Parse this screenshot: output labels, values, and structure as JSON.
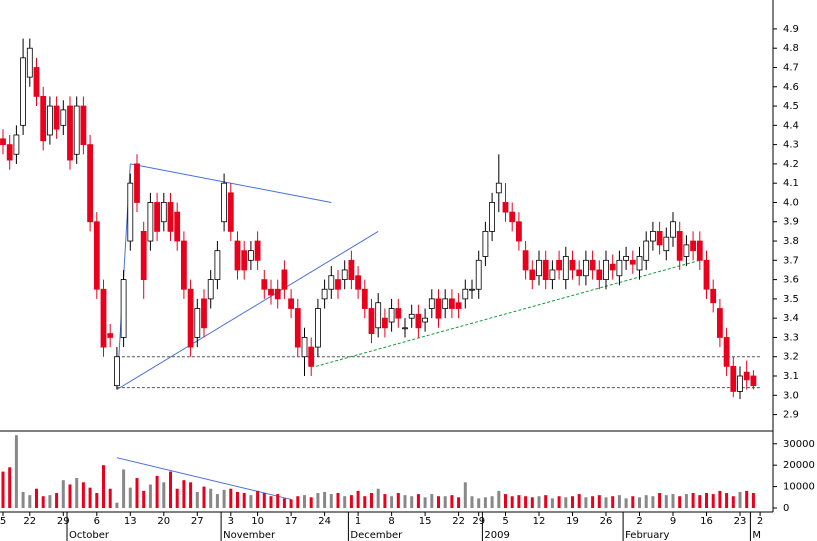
{
  "chart_data": {
    "type": "candlestick",
    "categories": [
      "5",
      null,
      null,
      null,
      "22",
      null,
      null,
      null,
      null,
      "29",
      null,
      null,
      null,
      null,
      "6",
      null,
      null,
      null,
      null,
      "13",
      null,
      null,
      null,
      null,
      "20",
      null,
      null,
      null,
      null,
      "27",
      null,
      null,
      null,
      null,
      "3",
      null,
      null,
      null,
      "10",
      null,
      null,
      null,
      null,
      "17",
      null,
      null,
      null,
      null,
      "24",
      null,
      null,
      null,
      null,
      "1",
      null,
      null,
      null,
      null,
      "8",
      null,
      null,
      null,
      null,
      "15",
      null,
      null,
      null,
      null,
      "22",
      null,
      null,
      "29",
      null,
      null,
      null,
      "5",
      null,
      null,
      null,
      null,
      "12",
      null,
      null,
      null,
      null,
      "19",
      null,
      null,
      null,
      null,
      "26",
      null,
      null,
      null,
      null,
      "2",
      null,
      null,
      null,
      null,
      "9",
      null,
      null,
      null,
      null,
      "16",
      null,
      null,
      null,
      null,
      "23",
      null,
      null,
      "2"
    ],
    "period_labels": [
      null,
      null,
      null,
      null,
      null,
      null,
      null,
      null,
      null,
      null,
      "October",
      null,
      null,
      null,
      null,
      null,
      null,
      null,
      null,
      null,
      null,
      null,
      null,
      null,
      null,
      null,
      null,
      null,
      null,
      null,
      null,
      null,
      null,
      "November",
      null,
      null,
      null,
      null,
      null,
      null,
      null,
      null,
      null,
      null,
      null,
      null,
      null,
      null,
      null,
      null,
      null,
      null,
      "December",
      null,
      null,
      null,
      null,
      null,
      null,
      null,
      null,
      null,
      null,
      null,
      null,
      null,
      null,
      null,
      null,
      null,
      null,
      null,
      "2009",
      null,
      null,
      null,
      null,
      null,
      null,
      null,
      null,
      null,
      null,
      null,
      null,
      null,
      null,
      null,
      null,
      null,
      null,
      null,
      null,
      "February",
      null,
      null,
      null,
      null,
      null,
      null,
      null,
      null,
      null,
      null,
      null,
      null,
      null,
      null,
      null,
      null,
      null,
      null,
      "M"
    ],
    "open": [
      4.33,
      4.3,
      4.25,
      4.4,
      4.65,
      4.7,
      4.55,
      4.35,
      4.5,
      4.4,
      4.5,
      4.25,
      4.5,
      4.3,
      3.9,
      3.55,
      3.32,
      3.05,
      3.3,
      3.8,
      4.2,
      3.85,
      3.8,
      4.0,
      3.9,
      4.0,
      3.95,
      3.8,
      3.55,
      3.3,
      3.5,
      3.5,
      3.6,
      3.9,
      4.05,
      3.8,
      3.75,
      3.7,
      3.8,
      3.6,
      3.55,
      3.55,
      3.65,
      3.5,
      3.45,
      3.2,
      3.25,
      3.25,
      3.5,
      3.55,
      3.6,
      3.6,
      3.7,
      3.62,
      3.55,
      3.45,
      3.35,
      3.4,
      3.38,
      3.45,
      3.35,
      3.4,
      3.42,
      3.38,
      3.45,
      3.5,
      3.45,
      3.5,
      3.48,
      3.5,
      3.55,
      3.55,
      3.72,
      3.85,
      4.05,
      4.0,
      3.95,
      3.9,
      3.75,
      3.65,
      3.62,
      3.7,
      3.6,
      3.7,
      3.6,
      3.7,
      3.65,
      3.62,
      3.7,
      3.65,
      3.6,
      3.68,
      3.62,
      3.7,
      3.7,
      3.65,
      3.7,
      3.8,
      3.85,
      3.75,
      3.82,
      3.85,
      3.72,
      3.8,
      3.8,
      3.7,
      3.55,
      3.45,
      3.3,
      3.15,
      3.02,
      3.12,
      3.1,
      null
    ],
    "high": [
      4.38,
      4.35,
      4.4,
      4.85,
      4.85,
      4.75,
      4.6,
      4.55,
      4.55,
      4.53,
      4.55,
      4.55,
      4.55,
      4.35,
      3.95,
      3.6,
      3.37,
      3.25,
      3.65,
      4.15,
      4.25,
      3.9,
      4.05,
      4.05,
      4.05,
      4.05,
      4.0,
      3.85,
      3.6,
      3.5,
      3.55,
      3.65,
      3.8,
      4.15,
      4.1,
      3.85,
      3.8,
      3.8,
      3.85,
      3.65,
      3.6,
      3.6,
      3.7,
      3.55,
      3.5,
      3.35,
      3.3,
      3.5,
      3.6,
      3.67,
      3.65,
      3.7,
      3.75,
      3.67,
      3.6,
      3.5,
      3.53,
      3.45,
      3.5,
      3.5,
      3.4,
      3.47,
      3.47,
      3.45,
      3.55,
      3.55,
      3.55,
      3.55,
      3.53,
      3.6,
      3.6,
      3.75,
      3.9,
      4.05,
      4.25,
      4.1,
      4.0,
      3.95,
      3.8,
      3.7,
      3.75,
      3.75,
      3.7,
      3.75,
      3.77,
      3.75,
      3.7,
      3.75,
      3.75,
      3.7,
      3.75,
      3.73,
      3.75,
      3.77,
      3.75,
      3.77,
      3.85,
      3.9,
      3.9,
      3.87,
      3.95,
      3.9,
      3.83,
      3.85,
      3.85,
      3.75,
      3.6,
      3.5,
      3.35,
      3.2,
      3.15,
      3.18,
      3.13,
      null
    ],
    "low": [
      4.25,
      4.17,
      4.2,
      4.35,
      4.6,
      4.5,
      4.27,
      4.3,
      4.33,
      4.35,
      4.17,
      4.2,
      4.25,
      3.85,
      3.5,
      3.2,
      3.25,
      3.03,
      3.25,
      3.75,
      3.95,
      3.5,
      3.75,
      3.8,
      3.85,
      3.8,
      3.75,
      3.5,
      3.2,
      3.25,
      3.3,
      3.45,
      3.55,
      3.85,
      3.8,
      3.6,
      3.6,
      3.65,
      3.65,
      3.5,
      3.47,
      3.45,
      3.5,
      3.4,
      3.2,
      3.1,
      3.1,
      3.2,
      3.45,
      3.5,
      3.5,
      3.55,
      3.55,
      3.5,
      3.4,
      3.27,
      3.3,
      3.3,
      3.33,
      3.35,
      3.3,
      3.35,
      3.3,
      3.33,
      3.4,
      3.35,
      3.4,
      3.4,
      3.4,
      3.45,
      3.5,
      3.5,
      3.67,
      3.8,
      3.95,
      3.9,
      3.85,
      3.75,
      3.6,
      3.55,
      3.57,
      3.55,
      3.55,
      3.6,
      3.55,
      3.6,
      3.57,
      3.57,
      3.6,
      3.55,
      3.55,
      3.6,
      3.57,
      3.65,
      3.63,
      3.6,
      3.65,
      3.75,
      3.73,
      3.7,
      3.77,
      3.65,
      3.67,
      3.7,
      3.65,
      3.5,
      3.43,
      3.25,
      3.1,
      2.99,
      2.98,
      3.03,
      3.03,
      null
    ],
    "close": [
      4.3,
      4.22,
      4.35,
      4.75,
      4.8,
      4.55,
      4.32,
      4.5,
      4.38,
      4.48,
      4.22,
      4.5,
      4.3,
      3.9,
      3.55,
      3.25,
      3.3,
      3.2,
      3.6,
      4.1,
      4.0,
      3.6,
      4.0,
      3.85,
      4.0,
      3.85,
      3.8,
      3.55,
      3.25,
      3.45,
      3.35,
      3.6,
      3.75,
      4.1,
      3.85,
      3.65,
      3.65,
      3.75,
      3.7,
      3.55,
      3.52,
      3.5,
      3.55,
      3.45,
      3.25,
      3.3,
      3.15,
      3.45,
      3.55,
      3.62,
      3.55,
      3.65,
      3.6,
      3.55,
      3.45,
      3.32,
      3.48,
      3.35,
      3.45,
      3.4,
      3.35,
      3.42,
      3.35,
      3.4,
      3.5,
      3.4,
      3.5,
      3.45,
      3.45,
      3.55,
      3.55,
      3.7,
      3.85,
      4.0,
      4.1,
      3.95,
      3.9,
      3.8,
      3.65,
      3.6,
      3.7,
      3.6,
      3.65,
      3.65,
      3.72,
      3.65,
      3.62,
      3.7,
      3.65,
      3.6,
      3.7,
      3.65,
      3.7,
      3.72,
      3.68,
      3.72,
      3.8,
      3.85,
      3.78,
      3.82,
      3.9,
      3.7,
      3.78,
      3.75,
      3.7,
      3.55,
      3.48,
      3.3,
      3.15,
      3.02,
      3.1,
      3.08,
      3.05,
      null
    ],
    "volume": [
      17000,
      19000,
      34000,
      7500,
      6000,
      9000,
      5500,
      6000,
      7000,
      13000,
      11000,
      14000,
      12000,
      9500,
      7000,
      20000,
      9000,
      2500,
      18000,
      9500,
      14000,
      8000,
      11000,
      15000,
      12000,
      17000,
      9000,
      13000,
      12000,
      7500,
      10000,
      9000,
      6500,
      8500,
      9000,
      7500,
      7000,
      6000,
      8000,
      7000,
      5500,
      6500,
      4500,
      4000,
      5500,
      6000,
      5000,
      7000,
      7500,
      6500,
      7000,
      5500,
      6000,
      8000,
      5500,
      7000,
      9000,
      6500,
      5500,
      7000,
      6000,
      5500,
      6500,
      5000,
      6500,
      5500,
      5500,
      6000,
      5000,
      12000,
      5500,
      4500,
      5000,
      5500,
      8000,
      6500,
      5500,
      6000,
      5500,
      5000,
      5500,
      6000,
      4500,
      5500,
      5000,
      5500,
      6500,
      5000,
      5500,
      6000,
      5000,
      5500,
      6000,
      4500,
      5500,
      5000,
      6000,
      5500,
      7000,
      6000,
      6500,
      5500,
      6500,
      7000,
      6000,
      7000,
      6500,
      8000,
      7000,
      5500,
      7500,
      8000,
      7000,
      null
    ],
    "up_color": "#ffffff",
    "down_color": "#e8001c",
    "down_volume_color": "#e8001c",
    "up_volume_color": "#888888",
    "ylim": [
      2.82,
      5.05
    ],
    "yticks": [
      {
        "value": 2.9,
        "label": "2.9"
      },
      {
        "value": 3.0,
        "label": "3.0"
      },
      {
        "value": 3.1,
        "label": "3.1"
      },
      {
        "value": 3.2,
        "label": "3.2"
      },
      {
        "value": 3.3,
        "label": "3.3"
      },
      {
        "value": 3.4,
        "label": "3.4"
      },
      {
        "value": 3.5,
        "label": "3.5"
      },
      {
        "value": 3.6,
        "label": "3.6"
      },
      {
        "value": 3.7,
        "label": "3.7"
      },
      {
        "value": 3.8,
        "label": "3.8"
      },
      {
        "value": 3.9,
        "label": "3.9"
      },
      {
        "value": 4.0,
        "label": "4.0"
      },
      {
        "value": 4.1,
        "label": "4.1"
      },
      {
        "value": 4.2,
        "label": "4.2"
      },
      {
        "value": 4.3,
        "label": "4.3"
      },
      {
        "value": 4.4,
        "label": "4.4"
      },
      {
        "value": 4.5,
        "label": "4.5"
      },
      {
        "value": 4.6,
        "label": "4.6"
      },
      {
        "value": 4.7,
        "label": "4.7"
      },
      {
        "value": 4.8,
        "label": "4.8"
      },
      {
        "value": 4.9,
        "label": "4.9"
      }
    ],
    "y2lim": [
      0,
      35500
    ],
    "y2ticks": [
      0,
      10000,
      20000,
      30000
    ],
    "trendlines": [
      {
        "x": [
          19,
          49
        ],
        "y": [
          4.2,
          4.0
        ],
        "color": "#4a6fd8",
        "dash": false,
        "panel": "price"
      },
      {
        "x": [
          17,
          56
        ],
        "y": [
          3.03,
          3.85
        ],
        "color": "#4a6fd8",
        "dash": false,
        "panel": "price"
      },
      {
        "x": [
          17,
          19
        ],
        "y": [
          3.03,
          4.2
        ],
        "color": "#4a6fd8",
        "dash": false,
        "panel": "price"
      },
      {
        "x": [
          46.7,
          104
        ],
        "y": [
          3.15,
          3.7
        ],
        "color": "#1a9a3a",
        "dash": true,
        "panel": "price"
      },
      {
        "x": [
          17,
          113
        ],
        "y": [
          3.2,
          3.2
        ],
        "color": "#555555",
        "dash": true,
        "panel": "price"
      },
      {
        "x": [
          17,
          113
        ],
        "y": [
          3.04,
          3.04
        ],
        "color": "#555555",
        "dash": true,
        "panel": "price"
      },
      {
        "x": [
          17,
          43
        ],
        "y": [
          23500,
          4000
        ],
        "color": "#4a6fd8",
        "dash": false,
        "panel": "volume"
      }
    ]
  }
}
